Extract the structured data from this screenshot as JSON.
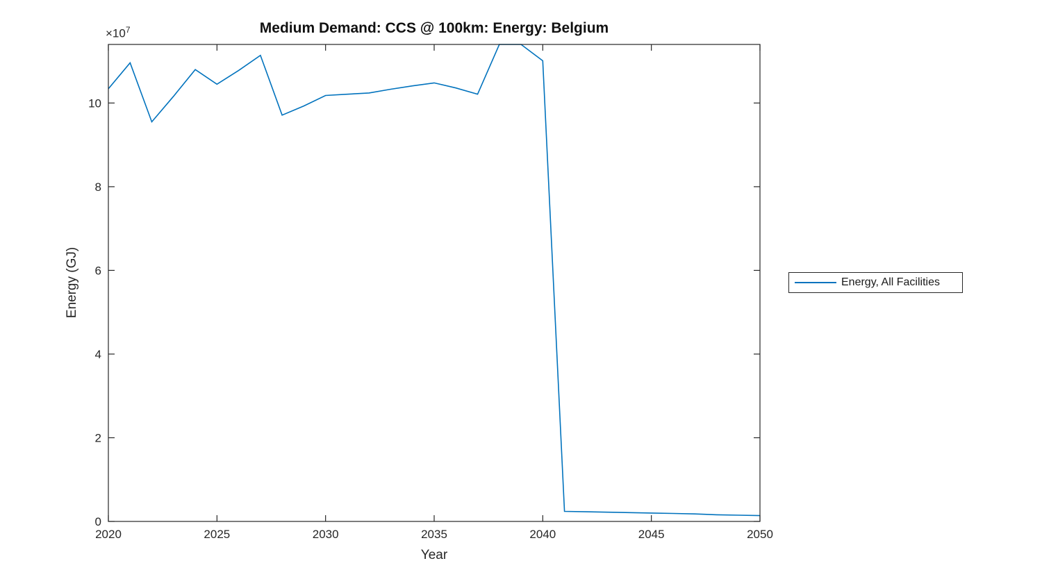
{
  "figure": {
    "title": "Medium Demand: CCS @ 100km: Energy: Belgium",
    "xlabel": "Year",
    "ylabel": "Energy (GJ)",
    "y_exponent_base": "×10",
    "y_exponent_power": "7",
    "legend": {
      "position": "outside-right",
      "entries": [
        {
          "label": "Energy, All Facilities",
          "color": "#0072BD"
        }
      ]
    }
  },
  "colors": {
    "series_line": "#0072BD",
    "axis": "#262626",
    "background": "#ffffff",
    "title_text": "#111111"
  },
  "chart_data": {
    "type": "line",
    "title": "Medium Demand: CCS @ 100km: Energy: Belgium",
    "xlabel": "Year",
    "ylabel": "Energy (GJ)",
    "y_unit_multiplier": 10000000,
    "y_axis_exponent_label": "×10⁷",
    "x": [
      2020,
      2021,
      2022,
      2023,
      2024,
      2025,
      2026,
      2027,
      2028,
      2029,
      2030,
      2031,
      2032,
      2033,
      2034,
      2035,
      2036,
      2037,
      2038,
      2039,
      2040,
      2041,
      2042,
      2043,
      2044,
      2045,
      2046,
      2047,
      2048,
      2049,
      2050
    ],
    "series": [
      {
        "name": "Energy, All Facilities",
        "color": "#0072BD",
        "values_1e7_GJ": [
          10.34,
          10.96,
          9.55,
          10.16,
          10.8,
          10.45,
          10.78,
          11.14,
          9.71,
          9.93,
          10.18,
          10.21,
          10.24,
          10.33,
          10.41,
          10.48,
          10.36,
          10.21,
          11.4,
          11.4,
          11.01,
          0.24,
          0.23,
          0.22,
          0.21,
          0.2,
          0.19,
          0.18,
          0.16,
          0.15,
          0.14
        ]
      }
    ],
    "xlim": [
      2020,
      2050
    ],
    "ylim_1e7_GJ": [
      0,
      11.4
    ],
    "xticks": [
      2020,
      2025,
      2030,
      2035,
      2040,
      2045,
      2050
    ],
    "yticks": [
      0,
      2,
      4,
      6,
      8,
      10
    ],
    "grid": false,
    "box": true,
    "tick_direction": "in",
    "legend_position": "outside-right",
    "legend_entries": [
      "Energy, All Facilities"
    ]
  }
}
